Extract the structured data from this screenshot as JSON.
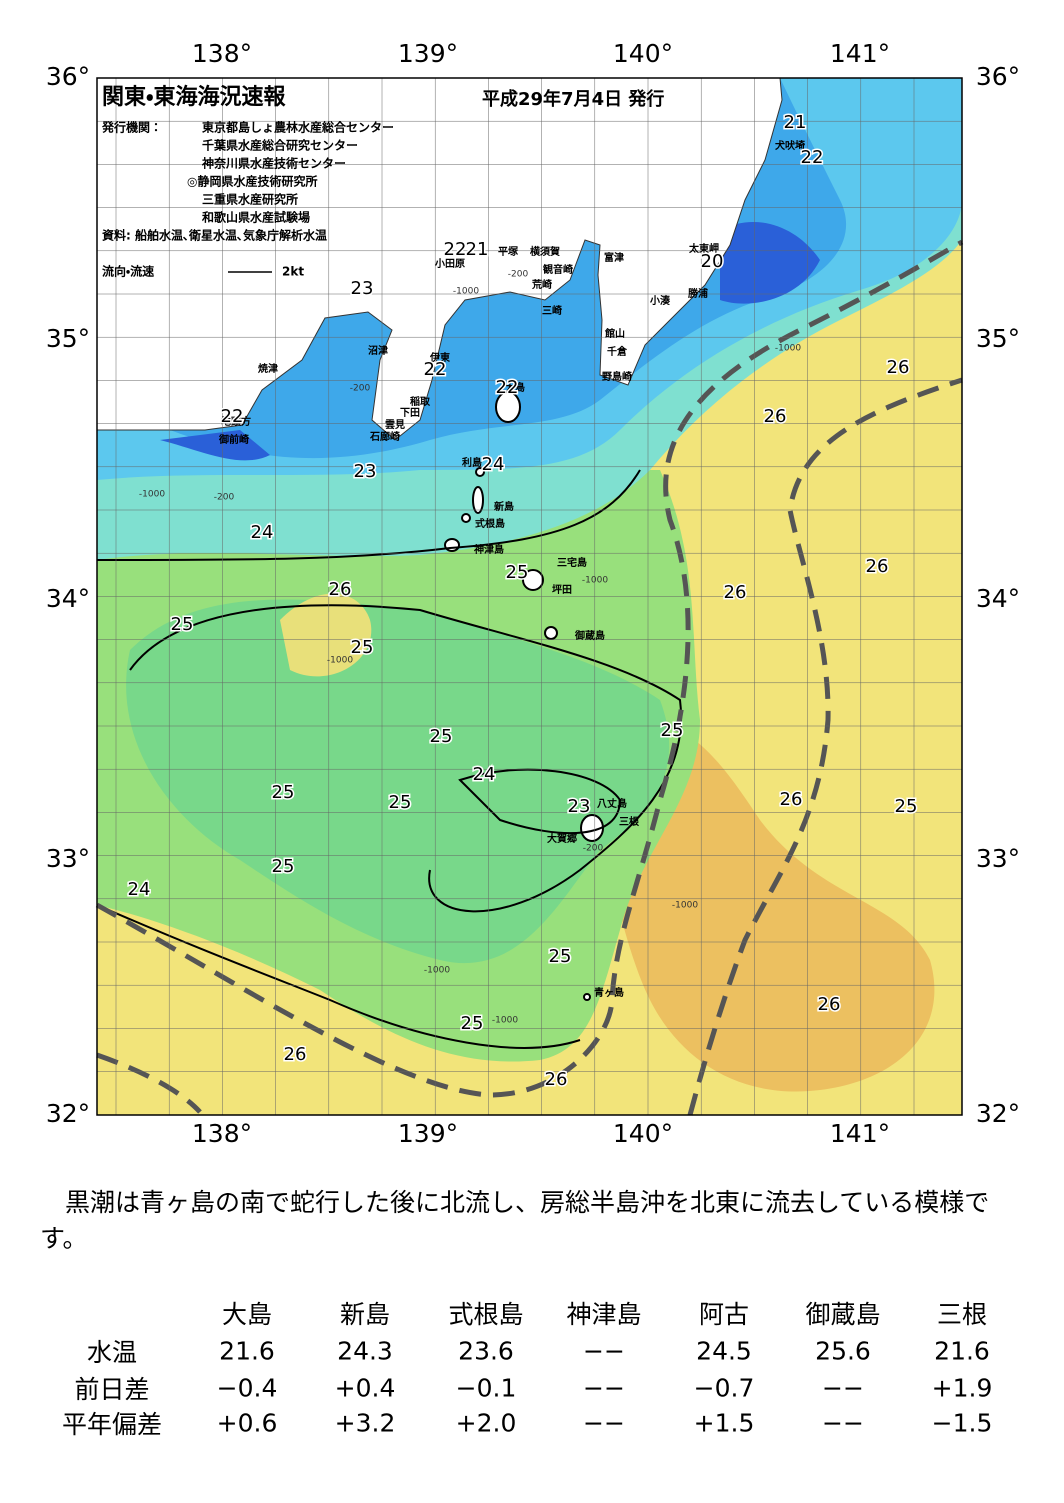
{
  "map": {
    "title": "関東・東海海況速報",
    "date": "平成29年7月4日 発行",
    "publisher_label": "発行機関：",
    "publishers": [
      "東京都島しょ農林水産総合センター",
      "千葉県水産総合研究センター",
      "神奈川県水産技術センター",
      "◎静岡県水産技術研究所",
      "三重県水産研究所",
      "和歌山県水産試験場"
    ],
    "source": "資料: 船舶水温､衛星水温､気象庁解析水温",
    "current_legend": "流向・流速",
    "current_scale": "2kt",
    "longitude_labels": [
      "138°",
      "139°",
      "140°",
      "141°"
    ],
    "latitude_labels": [
      "36°",
      "35°",
      "34°",
      "33°",
      "32°"
    ],
    "place_names": [
      "小田原",
      "平塚",
      "横須賀",
      "観音崎",
      "荒崎",
      "三崎",
      "富津",
      "小湊",
      "勝浦",
      "太東岬",
      "犬吠埼",
      "館山",
      "千倉",
      "野島崎",
      "沼津",
      "焼津",
      "伊東",
      "稲取",
      "下田",
      "雲見",
      "石廊崎",
      "御前崎",
      "地頭方",
      "大島",
      "利島",
      "新島",
      "式根島",
      "神津島",
      "三宅島",
      "坪田",
      "御蔵島",
      "八丈島",
      "三根",
      "大賀郷",
      "青ヶ島"
    ],
    "depth_labels": [
      "-1000",
      "-200",
      "-1000",
      "-1000",
      "-1000",
      "-1000",
      "-1000",
      "-200",
      "-1000",
      "-1000",
      "-200",
      "-200"
    ],
    "contour_labels": [
      21,
      22,
      20,
      22,
      21,
      23,
      22,
      22,
      22,
      23,
      24,
      24,
      26,
      25,
      25,
      25,
      26,
      26,
      26,
      26,
      25,
      25,
      24,
      25,
      25,
      23,
      26,
      25,
      25,
      24,
      25,
      25,
      26,
      26,
      26
    ]
  },
  "summary": "黒潮は青ヶ島の南で蛇行した後に北流し、房総半島沖を北東に流去している模様です。",
  "table": {
    "stations": [
      "大島",
      "新島",
      "式根島",
      "神津島",
      "阿古",
      "御蔵島",
      "三根"
    ],
    "rows": [
      {
        "label": "水温",
        "values": [
          "21.6",
          "24.3",
          "23.6",
          "−−",
          "24.5",
          "25.6",
          "21.6"
        ]
      },
      {
        "label": "前日差",
        "values": [
          "−0.4",
          "+0.4",
          "−0.1",
          "−−",
          "−0.7",
          "−−",
          "+1.9"
        ]
      },
      {
        "label": "平年偏差",
        "values": [
          "+0.6",
          "+3.2",
          "+2.0",
          "−−",
          "+1.5",
          "−−",
          "−1.5"
        ]
      }
    ]
  }
}
